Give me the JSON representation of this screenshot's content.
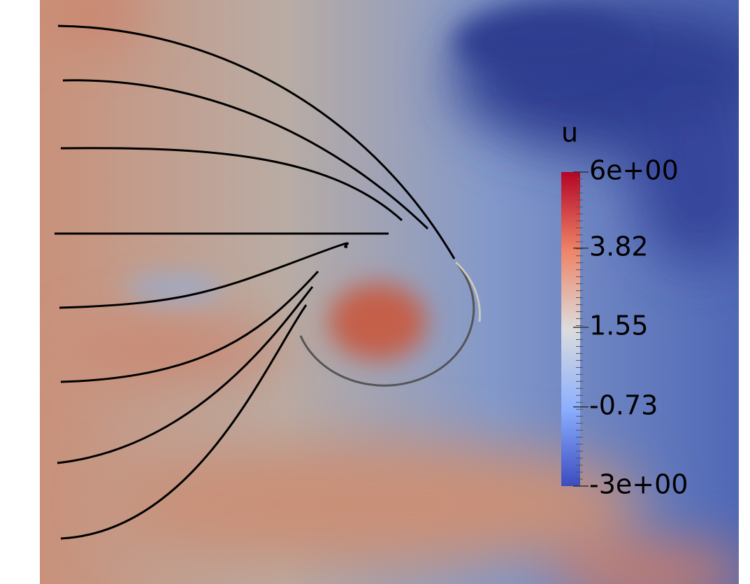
{
  "colorbar": {
    "title": "u",
    "range": [
      -3,
      6
    ],
    "ticks": [
      {
        "value": 6,
        "label": "6e+00"
      },
      3.82,
      1.55,
      -0.73,
      {
        "value": -3,
        "label": "-3e+00"
      }
    ]
  }
}
